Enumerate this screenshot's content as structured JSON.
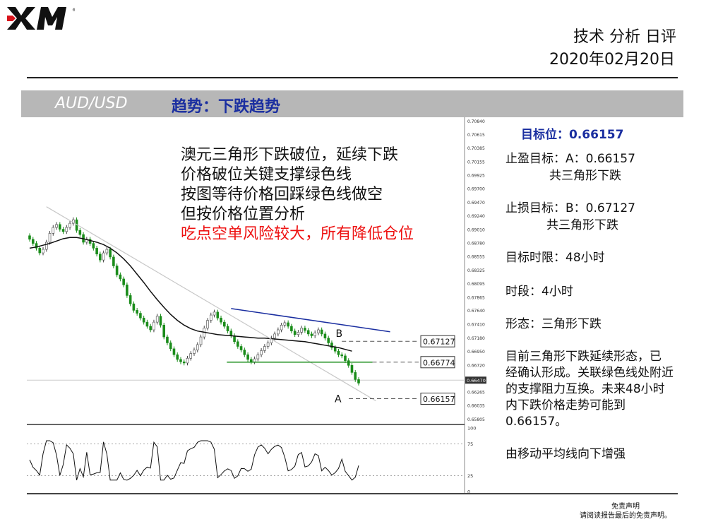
{
  "header": {
    "logo_text": "XM",
    "title": "技术 分析 日评",
    "date": "2020年02月20日"
  },
  "band": {
    "pair": "AUD/USD",
    "trend": "趋势：下跌趋势"
  },
  "overlay": {
    "lines": [
      "澳元三角形下跌破位，延续下跌",
      "价格破位关键支撑绿色线",
      "按图等待价格回踩绿色线做空",
      "但按价格位置分析"
    ],
    "warning": "吃点空单风险较大，所有降低仓位"
  },
  "panel": {
    "target": "目标位：0.66157",
    "take_profit": "止盈目标：A：0.66157",
    "tp_note": "共三角形下跌",
    "stop_loss": "止损目标：B：0.67127",
    "sl_note": "共三角形下跌",
    "time_limit": "目标时限：48小时",
    "timeframe": "时段：4小时",
    "pattern": "形态：三角形下跌",
    "desc_lines": [
      "目前三角形下跌延续形态，已",
      "经确认形成。关联绿色线处附近",
      "的支撑阻力互换。未来48小时",
      "内下跌价格走势可能到",
      "0.66157。"
    ],
    "ma_note": "由移动平均线向下增强"
  },
  "disclaimer": {
    "line1": "免责声明",
    "line2": "请阅读报告最后的免责声明。"
  },
  "colors": {
    "band": "#b7b7b7",
    "trend_text": "#1a2ea0",
    "warning": "#e11111",
    "support": "#1a8c1a",
    "resistance": "#1a2ea0"
  },
  "chart_data": {
    "type": "candlestick",
    "price_ticks": [
      "0.70840",
      "0.70615",
      "0.70385",
      "0.70155",
      "0.69925",
      "0.69700",
      "0.69470",
      "0.69240",
      "0.69010",
      "0.68780",
      "0.68555",
      "0.68325",
      "0.68095",
      "0.67865",
      "0.67640",
      "0.67410",
      "0.67180",
      "0.66950",
      "0.66720",
      "0.66470",
      "0.66265",
      "0.66035",
      "0.65805"
    ],
    "current_price": "0.66470",
    "ylim": [
      0.65805,
      0.7084
    ],
    "levels": [
      {
        "label": "0.67127",
        "value": 0.67127,
        "marker": "B",
        "style": "dashed"
      },
      {
        "label": "0.66774",
        "value": 0.66774,
        "style": "green-support"
      },
      {
        "label": "0.66157",
        "value": 0.66157,
        "marker": "A",
        "style": "dashed"
      }
    ],
    "resistance_line": [
      {
        "i": 60,
        "v": 0.6768
      },
      {
        "i": 100,
        "v": 0.6724
      }
    ],
    "close": [
      0.6885,
      0.6878,
      0.687,
      0.6862,
      0.6868,
      0.688,
      0.6895,
      0.6905,
      0.691,
      0.6902,
      0.6898,
      0.6905,
      0.6912,
      0.6918,
      0.69,
      0.6893,
      0.688,
      0.6885,
      0.6878,
      0.687,
      0.686,
      0.685,
      0.6862,
      0.6868,
      0.6855,
      0.684,
      0.6825,
      0.6818,
      0.6808,
      0.679,
      0.6776,
      0.6765,
      0.676,
      0.6752,
      0.6745,
      0.6738,
      0.6732,
      0.6745,
      0.6755,
      0.674,
      0.672,
      0.671,
      0.67,
      0.669,
      0.6682,
      0.6678,
      0.6676,
      0.6684,
      0.6692,
      0.6698,
      0.6707,
      0.672,
      0.6735,
      0.6748,
      0.6757,
      0.6762,
      0.6752,
      0.6745,
      0.6738,
      0.673,
      0.6722,
      0.6712,
      0.6704,
      0.6698,
      0.669,
      0.6682,
      0.6678,
      0.6683,
      0.669,
      0.6697,
      0.6704,
      0.671,
      0.6718,
      0.6725,
      0.6732,
      0.674,
      0.6744,
      0.6738,
      0.673,
      0.6724,
      0.6728,
      0.6735,
      0.6731,
      0.6725,
      0.6722,
      0.6727,
      0.6732,
      0.6725,
      0.6718,
      0.671,
      0.6702,
      0.6696,
      0.669,
      0.6688,
      0.668,
      0.6672,
      0.666,
      0.6648,
      0.6642
    ],
    "ma": [
      0.687,
      0.6872,
      0.6875,
      0.6878,
      0.6882,
      0.6886,
      0.6888,
      0.6888,
      0.6886,
      0.6883,
      0.688,
      0.6876,
      0.687,
      0.6862,
      0.6852,
      0.684,
      0.6826,
      0.6812,
      0.6797,
      0.6783,
      0.677,
      0.6758,
      0.6748,
      0.674,
      0.6734,
      0.673,
      0.6728,
      0.6726,
      0.6724,
      0.6723,
      0.6722,
      0.6721,
      0.672,
      0.6719,
      0.6718,
      0.6718,
      0.6717,
      0.6716,
      0.6715,
      0.6714,
      0.6713,
      0.6712,
      0.671,
      0.6708,
      0.6706,
      0.6704,
      0.6702,
      0.6699,
      0.6696
    ],
    "oscillator_levels": [
      "100",
      "75",
      "25",
      "0"
    ]
  }
}
